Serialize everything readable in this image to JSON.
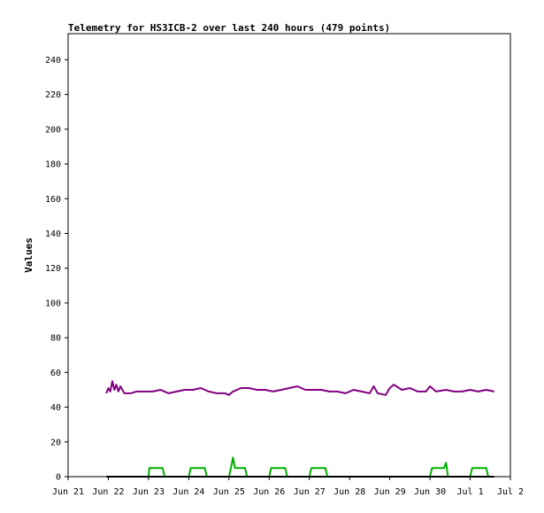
{
  "chart_data": {
    "type": "line",
    "title": "Telemetry for HS3ICB-2 over last 240 hours (479 points)",
    "ylabel": "Values",
    "xlabel": "",
    "ylim": [
      0,
      255
    ],
    "xlim": [
      "Jun 21",
      "Jul 2"
    ],
    "y_ticks": [
      0,
      20,
      40,
      60,
      80,
      100,
      120,
      140,
      160,
      180,
      200,
      220,
      240
    ],
    "x_ticks": [
      "Jun 21",
      "Jun 22",
      "Jun 23",
      "Jun 24",
      "Jun 25",
      "Jun 26",
      "Jun 27",
      "Jun 28",
      "Jun 29",
      "Jun 30",
      "Jul 1",
      "Jul 2"
    ],
    "grid": false,
    "series": [
      {
        "color": "#800080",
        "values": [
          [
            "Jun 21.95",
            48
          ],
          [
            "Jun 22.00",
            51
          ],
          [
            "Jun 22.05",
            49
          ],
          [
            "Jun 22.10",
            55
          ],
          [
            "Jun 22.15",
            50
          ],
          [
            "Jun 22.20",
            53
          ],
          [
            "Jun 22.25",
            49
          ],
          [
            "Jun 22.30",
            52
          ],
          [
            "Jun 22.40",
            48
          ],
          [
            "Jun 22.55",
            48
          ],
          [
            "Jun 22.70",
            49
          ],
          [
            "Jun 22.90",
            49
          ],
          [
            "Jun 23.10",
            49
          ],
          [
            "Jun 23.30",
            50
          ],
          [
            "Jun 23.50",
            48
          ],
          [
            "Jun 23.70",
            49
          ],
          [
            "Jun 23.90",
            50
          ],
          [
            "Jun 24.10",
            50
          ],
          [
            "Jun 24.30",
            51
          ],
          [
            "Jun 24.50",
            49
          ],
          [
            "Jun 24.70",
            48
          ],
          [
            "Jun 24.90",
            48
          ],
          [
            "Jun 25.00",
            47
          ],
          [
            "Jun 25.10",
            49
          ],
          [
            "Jun 25.30",
            51
          ],
          [
            "Jun 25.50",
            51
          ],
          [
            "Jun 25.70",
            50
          ],
          [
            "Jun 25.90",
            50
          ],
          [
            "Jun 26.10",
            49
          ],
          [
            "Jun 26.30",
            50
          ],
          [
            "Jun 26.50",
            51
          ],
          [
            "Jun 26.70",
            52
          ],
          [
            "Jun 26.90",
            50
          ],
          [
            "Jun 27.10",
            50
          ],
          [
            "Jun 27.30",
            50
          ],
          [
            "Jun 27.50",
            49
          ],
          [
            "Jun 27.70",
            49
          ],
          [
            "Jun 27.90",
            48
          ],
          [
            "Jun 28.10",
            50
          ],
          [
            "Jun 28.30",
            49
          ],
          [
            "Jun 28.50",
            48
          ],
          [
            "Jun 28.60",
            52
          ],
          [
            "Jun 28.70",
            48
          ],
          [
            "Jun 28.90",
            47
          ],
          [
            "Jun 29.00",
            51
          ],
          [
            "Jun 29.10",
            53
          ],
          [
            "Jun 29.30",
            50
          ],
          [
            "Jun 29.50",
            51
          ],
          [
            "Jun 29.70",
            49
          ],
          [
            "Jun 29.90",
            49
          ],
          [
            "Jun 30.00",
            52
          ],
          [
            "Jun 30.15",
            49
          ],
          [
            "Jun 30.40",
            50
          ],
          [
            "Jun 30.60",
            49
          ],
          [
            "Jun 30.80",
            49
          ],
          [
            "Jul 1.00",
            50
          ],
          [
            "Jul 1.20",
            49
          ],
          [
            "Jul 1.40",
            50
          ],
          [
            "Jul 1.60",
            49
          ]
        ]
      },
      {
        "color": "#00b000",
        "values": [
          [
            "Jun 22.90",
            0
          ],
          [
            "Jun 23.00",
            0
          ],
          [
            "Jun 23.02",
            5
          ],
          [
            "Jun 23.35",
            5
          ],
          [
            "Jun 23.40",
            0
          ],
          [
            "Jun 24.00",
            0
          ],
          [
            "Jun 24.05",
            5
          ],
          [
            "Jun 24.40",
            5
          ],
          [
            "Jun 24.45",
            0
          ],
          [
            "Jun 25.00",
            0
          ],
          [
            "Jun 25.05",
            5
          ],
          [
            "Jun 25.10",
            11
          ],
          [
            "Jun 25.15",
            5
          ],
          [
            "Jun 25.40",
            5
          ],
          [
            "Jun 25.45",
            0
          ],
          [
            "Jun 26.00",
            0
          ],
          [
            "Jun 26.05",
            5
          ],
          [
            "Jun 26.40",
            5
          ],
          [
            "Jun 26.45",
            0
          ],
          [
            "Jun 27.00",
            0
          ],
          [
            "Jun 27.05",
            5
          ],
          [
            "Jun 27.40",
            5
          ],
          [
            "Jun 27.45",
            0
          ],
          [
            "Jun 30.00",
            0
          ],
          [
            "Jun 30.05",
            5
          ],
          [
            "Jun 30.35",
            5
          ],
          [
            "Jun 30.40",
            8
          ],
          [
            "Jun 30.45",
            0
          ],
          [
            "Jul 1.00",
            0
          ],
          [
            "Jul 1.05",
            5
          ],
          [
            "Jul 1.40",
            5
          ],
          [
            "Jul 1.45",
            0
          ]
        ]
      },
      {
        "color": "#000000",
        "values": [
          [
            "Jun 21.95",
            0
          ],
          [
            "Jul 1.60",
            0
          ]
        ]
      }
    ]
  }
}
